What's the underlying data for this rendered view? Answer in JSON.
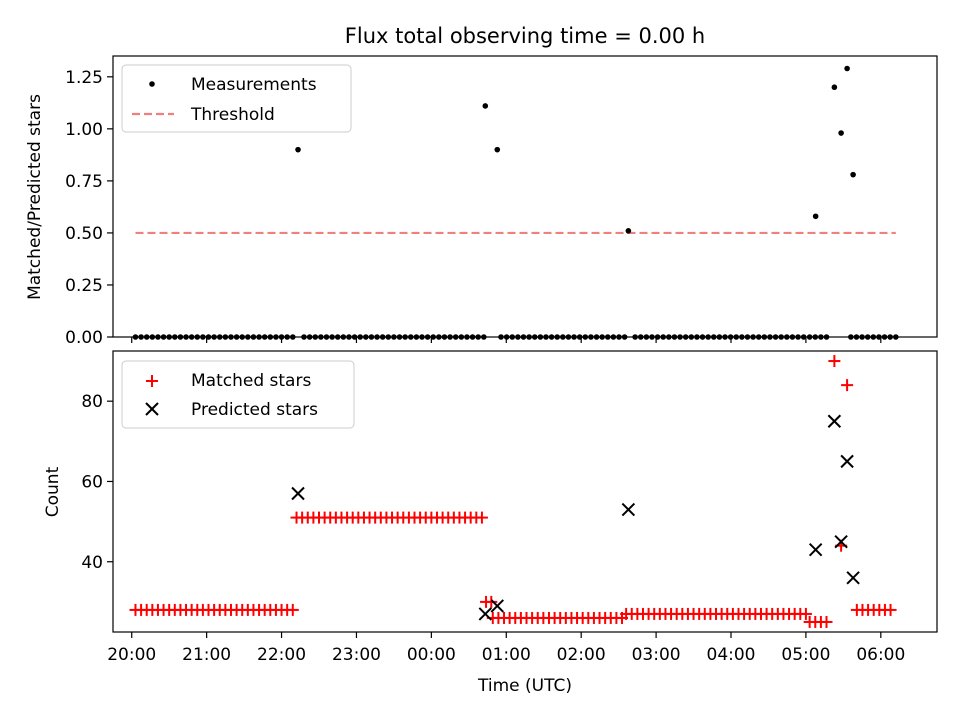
{
  "chart_data": [
    {
      "type": "scatter",
      "title": "Flux total observing time = 0.00 h",
      "xlabel": "",
      "ylabel": "Matched/Predicted stars",
      "xlim": [
        19.75,
        30.75
      ],
      "ylim": [
        0,
        1.35
      ],
      "yticks": [
        0,
        0.25,
        0.5,
        0.75,
        1.0,
        1.25
      ],
      "yticklabels": [
        "0.00",
        "0.25",
        "0.50",
        "0.75",
        "1.00",
        "1.25"
      ],
      "legend_position": "top-left",
      "series": [
        {
          "name": "Measurements",
          "marker": "dot",
          "color": "#000000",
          "zero_segments": [
            [
              20.05,
              22.2
            ],
            [
              22.3,
              24.7
            ],
            [
              24.93,
              26.62
            ],
            [
              26.72,
              28.97
            ],
            [
              29.05,
              29.33
            ],
            [
              29.6,
              30.2
            ]
          ],
          "nonzero_points": [
            [
              22.22,
              0.9
            ],
            [
              24.72,
              1.11
            ],
            [
              24.88,
              0.9
            ],
            [
              26.63,
              0.51
            ],
            [
              29.13,
              0.58
            ],
            [
              29.38,
              1.2
            ],
            [
              29.47,
              0.98
            ],
            [
              29.55,
              1.29
            ],
            [
              29.63,
              0.78
            ]
          ]
        },
        {
          "name": "Threshold",
          "style": "dashed",
          "color": "#f08080",
          "x": [
            20.05,
            30.2
          ],
          "y": [
            0.5,
            0.5
          ]
        }
      ]
    },
    {
      "type": "scatter",
      "title": "",
      "xlabel": "Time (UTC)",
      "ylabel": "Count",
      "xlim": [
        19.75,
        30.75
      ],
      "ylim": [
        22.5,
        92.5
      ],
      "yticks": [
        40,
        60,
        80
      ],
      "yticklabels": [
        "40",
        "60",
        "80"
      ],
      "xticks": [
        20,
        21,
        22,
        23,
        24,
        25,
        26,
        27,
        28,
        29,
        30
      ],
      "xticklabels": [
        "20:00",
        "21:00",
        "22:00",
        "23:00",
        "00:00",
        "01:00",
        "02:00",
        "03:00",
        "04:00",
        "05:00",
        "06:00"
      ],
      "legend_position": "top-left",
      "series": [
        {
          "name": "Matched stars",
          "marker": "plus",
          "color": "#ff0000",
          "segments": [
            [
              20.05,
              22.2,
              28
            ],
            [
              22.2,
              24.7,
              51
            ],
            [
              24.82,
              26.6,
              26
            ],
            [
              26.6,
              29.0,
              27
            ],
            [
              29.05,
              29.32,
              25
            ],
            [
              29.68,
              30.2,
              28
            ]
          ],
          "points": [
            [
              24.73,
              30
            ],
            [
              24.8,
              30
            ],
            [
              29.38,
              90
            ],
            [
              29.47,
              44
            ],
            [
              29.55,
              84
            ]
          ]
        },
        {
          "name": "Predicted stars",
          "marker": "x",
          "color": "#000000",
          "points": [
            [
              22.22,
              57
            ],
            [
              24.72,
              27
            ],
            [
              24.88,
              29
            ],
            [
              26.63,
              53
            ],
            [
              29.13,
              43
            ],
            [
              29.38,
              75
            ],
            [
              29.47,
              45
            ],
            [
              29.55,
              65
            ],
            [
              29.63,
              36
            ]
          ]
        }
      ]
    }
  ]
}
